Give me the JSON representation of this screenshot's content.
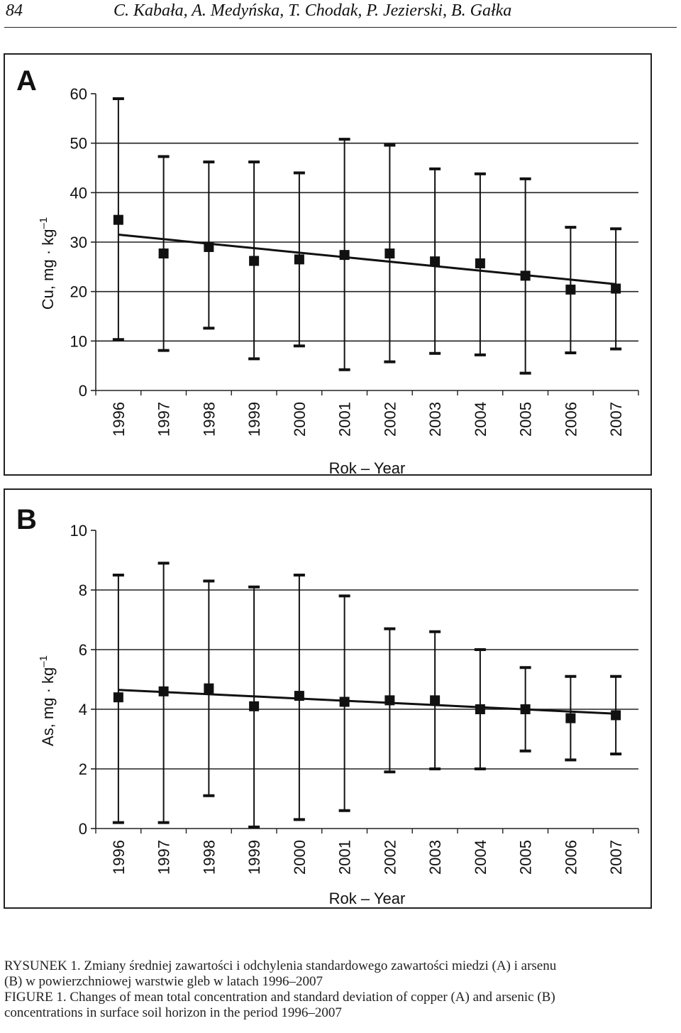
{
  "header": {
    "page_number": "84",
    "authors": "C. Kabała, A. Medyńska, T. Chodak, P. Jezierski, B. Gałka"
  },
  "chart_data": [
    {
      "type": "scatter",
      "panel_label": "A",
      "ylabel": "Cu, mg · kg",
      "ylabel_sup": "–1",
      "xlabel": "Rok – Year",
      "ylim": [
        0,
        60
      ],
      "yticks": [
        "0",
        "10",
        "20",
        "30",
        "40",
        "50",
        "60"
      ],
      "grid": true,
      "categories": [
        "1996",
        "1997",
        "1998",
        "1999",
        "2000",
        "2001",
        "2002",
        "2003",
        "2004",
        "2005",
        "2006",
        "2007"
      ],
      "series": [
        {
          "values": [
            34.5,
            27.7,
            29.0,
            26.2,
            26.5,
            27.4,
            27.7,
            26.1,
            25.7,
            23.2,
            20.4,
            20.6
          ],
          "error_upper": [
            59.0,
            47.3,
            46.2,
            46.2,
            44.0,
            50.8,
            49.6,
            44.8,
            43.8,
            42.8,
            33.0,
            32.7
          ],
          "error_lower": [
            10.3,
            8.1,
            12.6,
            6.4,
            9.0,
            4.2,
            5.8,
            7.5,
            7.2,
            3.5,
            7.6,
            8.4
          ]
        }
      ],
      "trendline": {
        "start": 31.5,
        "end": 21.5
      }
    },
    {
      "type": "scatter",
      "panel_label": "B",
      "ylabel": "As, mg · kg",
      "ylabel_sup": "–1",
      "xlabel": "Rok – Year",
      "ylim": [
        0,
        10
      ],
      "yticks": [
        "0",
        "2",
        "4",
        "6",
        "8",
        "10"
      ],
      "grid": true,
      "categories": [
        "1996",
        "1997",
        "1998",
        "1999",
        "2000",
        "2001",
        "2002",
        "2003",
        "2004",
        "2005",
        "2006",
        "2007"
      ],
      "series": [
        {
          "values": [
            4.4,
            4.6,
            4.7,
            4.1,
            4.45,
            4.25,
            4.3,
            4.3,
            4.0,
            4.0,
            3.7,
            3.8
          ],
          "error_upper": [
            8.5,
            8.9,
            8.3,
            8.1,
            8.5,
            7.8,
            6.7,
            6.6,
            6.0,
            5.4,
            5.1,
            5.1
          ],
          "error_lower": [
            0.2,
            0.2,
            1.1,
            0.05,
            0.3,
            0.6,
            1.9,
            2.0,
            2.0,
            2.6,
            2.3,
            2.5
          ]
        }
      ],
      "trendline": {
        "start": 4.65,
        "end": 3.85
      }
    }
  ],
  "caption": {
    "line1": "RYSUNEK 1. Zmiany średniej zawartości i odchylenia standardowego zawartości miedzi (A) i arsenu",
    "line2": "(B) w powierzchniowej warstwie gleb w latach 1996–2007",
    "line3": "FIGURE 1. Changes of mean total concentration and standard deviation of copper (A) and arsenic (B)",
    "line4": "concentrations in surface soil horizon in the period 1996–2007"
  }
}
